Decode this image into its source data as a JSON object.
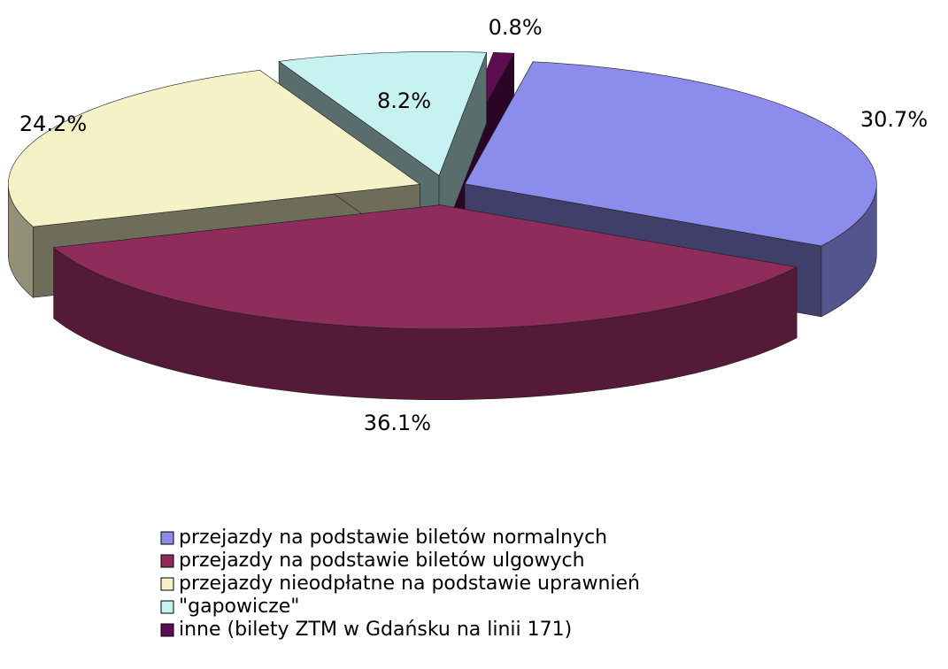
{
  "chart_data": {
    "type": "pie3d",
    "categories": [
      "przejazdy na podstawie biletów normalnych",
      "przejazdy na podstawie biletów ulgowych",
      "przejazdy nieodpłatne na podstawie uprawnień",
      "\"gapowicze\"",
      "inne (bilety ZTM w Gdańsku na linii 171)"
    ],
    "values": [
      30.7,
      36.1,
      24.2,
      8.2,
      0.8
    ],
    "value_labels": [
      "30.7%",
      "36.1%",
      "24.2%",
      "8.2%",
      "0.8%"
    ],
    "colors": [
      "#8c8cec",
      "#8e2c5c",
      "#f4f2c6",
      "#c6f2f2",
      "#5e0c52"
    ],
    "legend": "bottom"
  }
}
